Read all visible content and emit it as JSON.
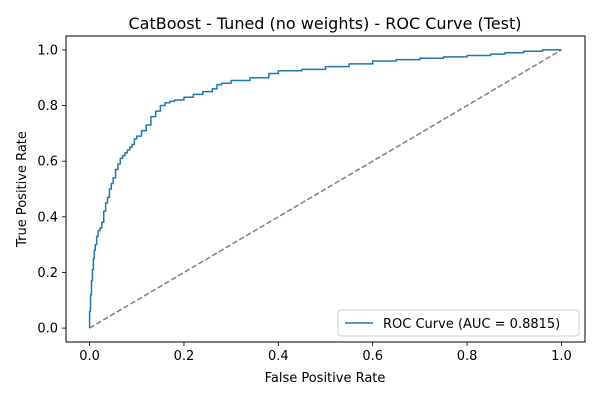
{
  "chart_data": {
    "type": "line",
    "title": "CatBoost - Tuned (no weights) - ROC Curve (Test)",
    "xlabel": "False Positive Rate",
    "ylabel": "True Positive Rate",
    "xlim": [
      -0.05,
      1.05
    ],
    "ylim": [
      -0.05,
      1.05
    ],
    "xticks": [
      "0.0",
      "0.2",
      "0.4",
      "0.6",
      "0.8",
      "1.0"
    ],
    "yticks": [
      "0.0",
      "0.2",
      "0.4",
      "0.6",
      "0.8",
      "1.0"
    ],
    "grid": false,
    "legend_position": "lower-right",
    "colors": {
      "roc": "#1f77b4",
      "diagonal": "#808080"
    },
    "series": [
      {
        "name": "ROC Curve (AUC = 0.8815)",
        "style": "solid",
        "x": [
          0.0,
          0.0,
          0.002,
          0.004,
          0.006,
          0.008,
          0.01,
          0.012,
          0.015,
          0.018,
          0.022,
          0.026,
          0.03,
          0.034,
          0.038,
          0.042,
          0.046,
          0.05,
          0.055,
          0.06,
          0.065,
          0.07,
          0.075,
          0.08,
          0.085,
          0.09,
          0.095,
          0.1,
          0.11,
          0.12,
          0.13,
          0.14,
          0.15,
          0.16,
          0.17,
          0.18,
          0.2,
          0.22,
          0.24,
          0.26,
          0.27,
          0.28,
          0.3,
          0.34,
          0.38,
          0.4,
          0.45,
          0.5,
          0.55,
          0.6,
          0.65,
          0.7,
          0.75,
          0.8,
          0.85,
          0.88,
          0.92,
          0.96,
          1.0
        ],
        "y": [
          0.0,
          0.06,
          0.12,
          0.17,
          0.21,
          0.25,
          0.28,
          0.3,
          0.33,
          0.35,
          0.36,
          0.38,
          0.42,
          0.45,
          0.47,
          0.5,
          0.52,
          0.54,
          0.57,
          0.59,
          0.61,
          0.62,
          0.63,
          0.64,
          0.65,
          0.66,
          0.68,
          0.69,
          0.71,
          0.73,
          0.76,
          0.78,
          0.8,
          0.81,
          0.815,
          0.82,
          0.83,
          0.84,
          0.85,
          0.86,
          0.875,
          0.88,
          0.89,
          0.9,
          0.915,
          0.925,
          0.93,
          0.94,
          0.95,
          0.96,
          0.965,
          0.97,
          0.975,
          0.98,
          0.985,
          0.99,
          0.995,
          1.0,
          1.0
        ]
      },
      {
        "name": "",
        "style": "dashed",
        "x": [
          0.0,
          1.0
        ],
        "y": [
          0.0,
          1.0
        ]
      }
    ]
  }
}
